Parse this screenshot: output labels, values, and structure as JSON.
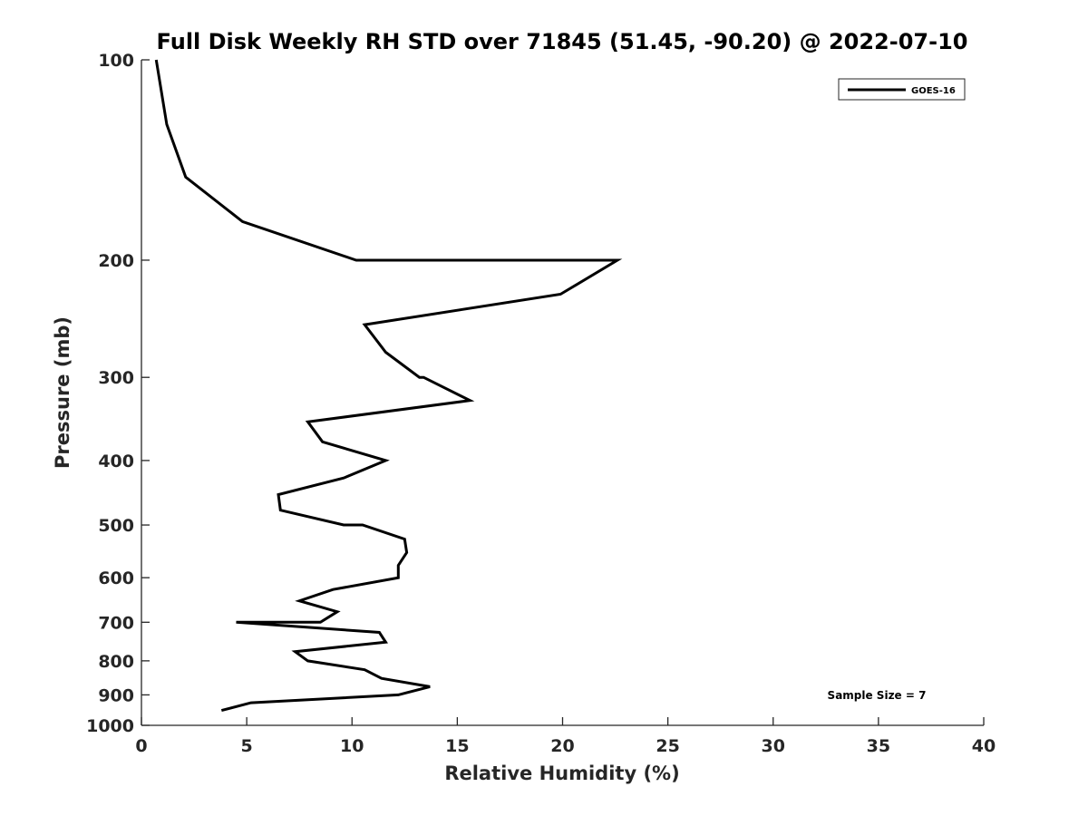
{
  "chart_data": {
    "type": "line",
    "title": "Full Disk Weekly RH STD over 71845 (51.45, -90.20) @ 2022-07-10",
    "xlabel": "Relative Humidity (%)",
    "ylabel": "Pressure (mb)",
    "xlim": [
      0,
      40
    ],
    "ylim": [
      100,
      1000
    ],
    "y_scale": "log",
    "y_reversed": true,
    "x_ticks": [
      "0",
      "5",
      "10",
      "15",
      "20",
      "25",
      "30",
      "35",
      "40"
    ],
    "y_ticks": [
      "100",
      "200",
      "300",
      "400",
      "500",
      "600",
      "700",
      "800",
      "900",
      "1000"
    ],
    "legend": {
      "placement": "top-right",
      "entries": [
        "GOES-16"
      ]
    },
    "annotation": "Sample Size = 7",
    "series": [
      {
        "name": "GOES-16",
        "color": "#000000",
        "points": [
          [
            0.7,
            100
          ],
          [
            1.2,
            125
          ],
          [
            2.1,
            150
          ],
          [
            4.8,
            175
          ],
          [
            10.2,
            200.0
          ],
          [
            22.6,
            200
          ],
          [
            19.9,
            225
          ],
          [
            10.6,
            250
          ],
          [
            11.6,
            275
          ],
          [
            13.2,
            300
          ],
          [
            13.4,
            300
          ],
          [
            15.6,
            325
          ],
          [
            7.9,
            350
          ],
          [
            8.6,
            375
          ],
          [
            11.6,
            400
          ],
          [
            9.6,
            425
          ],
          [
            6.5,
            450
          ],
          [
            6.6,
            475
          ],
          [
            9.6,
            500
          ],
          [
            10.5,
            500
          ],
          [
            12.5,
            525
          ],
          [
            12.6,
            550
          ],
          [
            12.2,
            575
          ],
          [
            12.2,
            600
          ],
          [
            9.1,
            625
          ],
          [
            7.5,
            650
          ],
          [
            9.3,
            675
          ],
          [
            8.5,
            700
          ],
          [
            4.5,
            700
          ],
          [
            11.3,
            725
          ],
          [
            11.6,
            750
          ],
          [
            7.3,
            775
          ],
          [
            7.9,
            800
          ],
          [
            10.6,
            825
          ],
          [
            11.4,
            850
          ],
          [
            13.7,
            875
          ],
          [
            12.2,
            900
          ],
          [
            5.2,
            925
          ],
          [
            3.8,
            950
          ]
        ]
      }
    ]
  }
}
